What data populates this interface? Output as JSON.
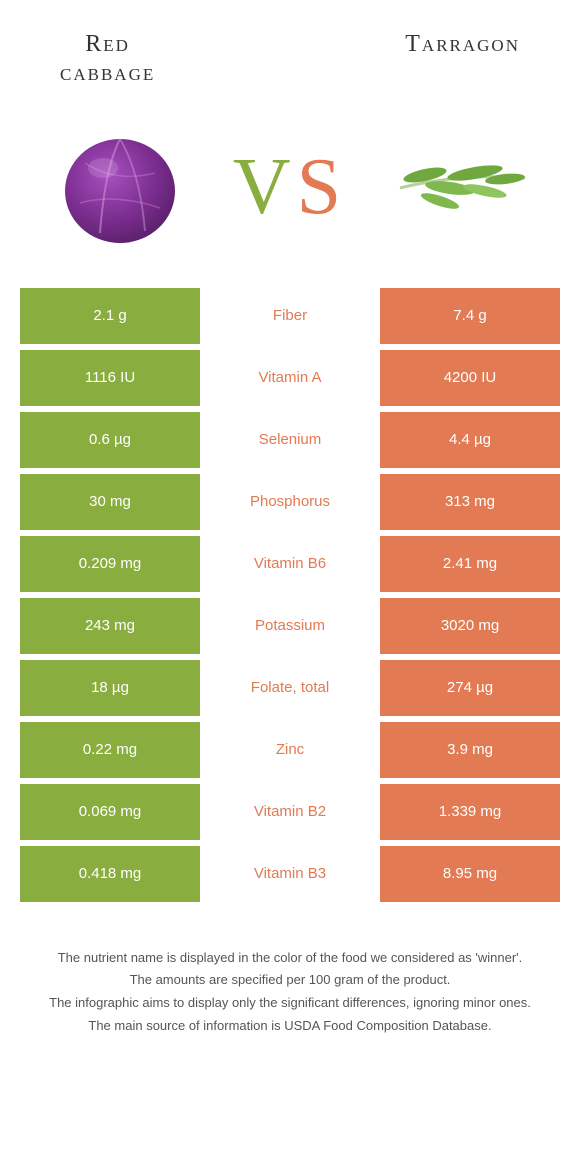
{
  "header": {
    "left_title": "Red\ncabbage",
    "right_title": "Tarragon"
  },
  "vs": {
    "v": "V",
    "s": "S"
  },
  "colors": {
    "left": "#8aad3f",
    "right": "#e27a53",
    "cabbage_fill": "#7b2e8f",
    "cabbage_dark": "#5a1f6b",
    "tarragon_leaf": "#6fa83f",
    "tarragon_stem": "#b8d199"
  },
  "rows": [
    {
      "left": "2.1 g",
      "label": "Fiber",
      "right": "7.4 g",
      "winner": "right"
    },
    {
      "left": "1116 IU",
      "label": "Vitamin A",
      "right": "4200 IU",
      "winner": "right"
    },
    {
      "left": "0.6 µg",
      "label": "Selenium",
      "right": "4.4 µg",
      "winner": "right"
    },
    {
      "left": "30 mg",
      "label": "Phosphorus",
      "right": "313 mg",
      "winner": "right"
    },
    {
      "left": "0.209 mg",
      "label": "Vitamin B6",
      "right": "2.41 mg",
      "winner": "right"
    },
    {
      "left": "243 mg",
      "label": "Potassium",
      "right": "3020 mg",
      "winner": "right"
    },
    {
      "left": "18 µg",
      "label": "Folate, total",
      "right": "274 µg",
      "winner": "right"
    },
    {
      "left": "0.22 mg",
      "label": "Zinc",
      "right": "3.9 mg",
      "winner": "right"
    },
    {
      "left": "0.069 mg",
      "label": "Vitamin B2",
      "right": "1.339 mg",
      "winner": "right"
    },
    {
      "left": "0.418 mg",
      "label": "Vitamin B3",
      "right": "8.95 mg",
      "winner": "right"
    }
  ],
  "footer": {
    "line1": "The nutrient name is displayed in the color of the food we considered as 'winner'.",
    "line2": "The amounts are specified per 100 gram of the product.",
    "line3": "The infographic aims to display only the significant differences, ignoring minor ones.",
    "line4": "The main source of information is USDA Food Composition Database."
  }
}
